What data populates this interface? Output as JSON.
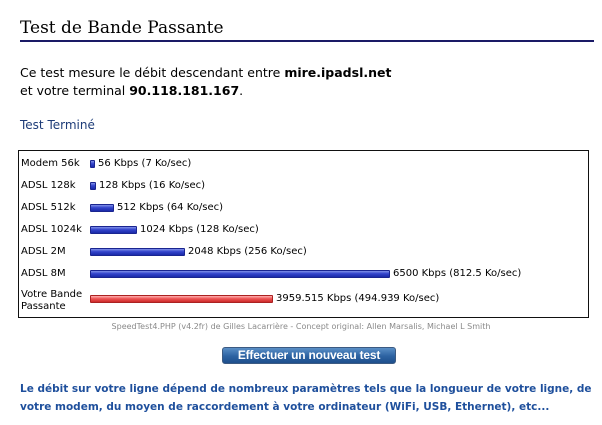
{
  "page": {
    "title": "Test de Bande Passante"
  },
  "intro": {
    "line1_prefix": "Ce test mesure le débit descendant entre ",
    "server": "mire.ipadsl.net",
    "line2_prefix": "et votre terminal ",
    "client_ip": "90.118.181.167",
    "line2_suffix": "."
  },
  "status": "Test Terminé",
  "chart_data": {
    "type": "bar",
    "orientation": "horizontal",
    "unit": "Kbps",
    "categories": [
      "Modem 56k",
      "ADSL 128k",
      "ADSL 512k",
      "ADSL 1024k",
      "ADSL 2M",
      "ADSL 8M",
      "Votre Bande Passante"
    ],
    "values": [
      56,
      128,
      512,
      1024,
      2048,
      6500,
      3959.515
    ],
    "value_labels": [
      "56 Kbps (7 Ko/sec)",
      "128 Kbps (16 Ko/sec)",
      "512 Kbps (64 Ko/sec)",
      "1024 Kbps (128 Ko/sec)",
      "2048 Kbps (256 Ko/sec)",
      "6500 Kbps (812.5 Ko/sec)",
      "3959.515 Kbps (494.939 Ko/sec)"
    ],
    "bar_colors": [
      "#2a3cc0",
      "#2a3cc0",
      "#2a3cc0",
      "#2a3cc0",
      "#2a3cc0",
      "#2a3cc0",
      "#e84444"
    ],
    "xlim": [
      0,
      6500
    ],
    "grid": false
  },
  "credits": "SpeedTest4.PHP (v4.2fr) de Gilles Lacarrière - Concept original: Allen Marsalis, Michael L Smith",
  "retest_button_label": "Effectuer un nouveau test",
  "footnote": "Le débit sur votre ligne dépend de nombreux paramètres tels que la longueur de votre ligne, de votre modem, du moyen de raccordement à votre ordinateur (WiFi, USB, Ethernet), etc...",
  "colors": {
    "title_rule": "#1a1a66",
    "link_blue": "#1e4f9c",
    "button": "#2c62a2"
  }
}
